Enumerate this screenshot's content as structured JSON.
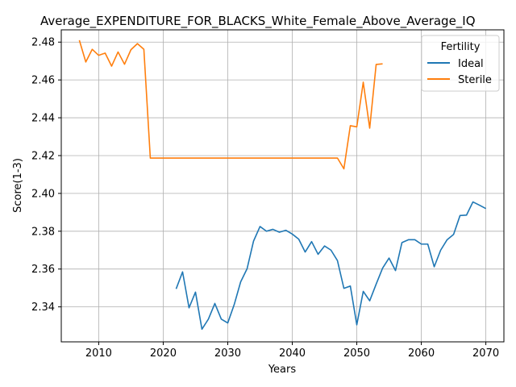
{
  "chart_data": {
    "type": "line",
    "title": "Average_EXPENDITURE_FOR_BLACKS_White_Female_Above_Average_IQ",
    "xlabel": "Years",
    "ylabel": "Score(1-3)",
    "xlim": [
      2004.2,
      2072.8
    ],
    "ylim": [
      2.3215,
      2.4865
    ],
    "x_ticks": [
      2010,
      2020,
      2030,
      2040,
      2050,
      2060,
      2070
    ],
    "y_ticks": [
      2.34,
      2.36,
      2.38,
      2.4,
      2.42,
      2.44,
      2.46,
      2.48
    ],
    "x_tick_labels": [
      "2010",
      "2020",
      "2030",
      "2040",
      "2050",
      "2060",
      "2070"
    ],
    "y_tick_labels": [
      "2.34",
      "2.36",
      "2.38",
      "2.40",
      "2.42",
      "2.44",
      "2.46",
      "2.48"
    ],
    "grid": true,
    "legend": {
      "title": "Fertility",
      "placement": "top-right"
    },
    "series": [
      {
        "name": "Ideal",
        "color": "#1f77b4",
        "x": [
          2022,
          2023,
          2024,
          2025,
          2026,
          2027,
          2028,
          2029,
          2030,
          2031,
          2032,
          2033,
          2034,
          2035,
          2036,
          2037,
          2038,
          2039,
          2040,
          2041,
          2042,
          2043,
          2044,
          2045,
          2046,
          2047,
          2048,
          2049,
          2050,
          2051,
          2052,
          2053,
          2054,
          2055,
          2056,
          2057,
          2058,
          2059,
          2060,
          2061,
          2062,
          2063,
          2064,
          2065,
          2066,
          2067,
          2068,
          2069,
          2070
        ],
        "values": [
          2.3495,
          2.3585,
          2.3395,
          2.3478,
          2.3282,
          2.3335,
          2.3418,
          2.3335,
          2.3315,
          2.3412,
          2.3532,
          2.3602,
          2.3748,
          2.3825,
          2.38,
          2.381,
          2.3795,
          2.3805,
          2.3785,
          2.3758,
          2.369,
          2.3745,
          2.3678,
          2.3722,
          2.37,
          2.3645,
          2.3498,
          2.351,
          2.3305,
          2.3482,
          2.3432,
          2.352,
          2.3605,
          2.3658,
          2.3592,
          2.374,
          2.3755,
          2.3755,
          2.3732,
          2.3732,
          2.3612,
          2.37,
          2.3755,
          2.3783,
          2.3883,
          2.3885,
          2.3955,
          2.3938,
          2.392
        ]
      },
      {
        "name": "Sterile",
        "color": "#ff7f0e",
        "x": [
          2007,
          2008,
          2009,
          2010,
          2011,
          2012,
          2013,
          2014,
          2015,
          2016,
          2017,
          2018,
          2019,
          2020,
          2021,
          2022,
          2023,
          2024,
          2025,
          2026,
          2027,
          2028,
          2029,
          2030,
          2031,
          2032,
          2033,
          2034,
          2035,
          2036,
          2037,
          2038,
          2039,
          2040,
          2041,
          2042,
          2043,
          2044,
          2045,
          2046,
          2047,
          2048,
          2049,
          2050,
          2051,
          2052,
          2053,
          2054
        ],
        "values": [
          2.481,
          2.4695,
          2.4762,
          2.473,
          2.4742,
          2.4673,
          2.4748,
          2.4683,
          2.476,
          2.4792,
          2.4762,
          2.4187,
          2.4187,
          2.4187,
          2.4187,
          2.4187,
          2.4187,
          2.4187,
          2.4187,
          2.4187,
          2.4187,
          2.4187,
          2.4187,
          2.4187,
          2.4187,
          2.4187,
          2.4187,
          2.4187,
          2.4187,
          2.4187,
          2.4187,
          2.4187,
          2.4187,
          2.4187,
          2.4187,
          2.4187,
          2.4187,
          2.4187,
          2.4187,
          2.4187,
          2.4187,
          2.413,
          2.4358,
          2.4352,
          2.4588,
          2.4345,
          2.4682,
          2.4685
        ]
      }
    ]
  }
}
